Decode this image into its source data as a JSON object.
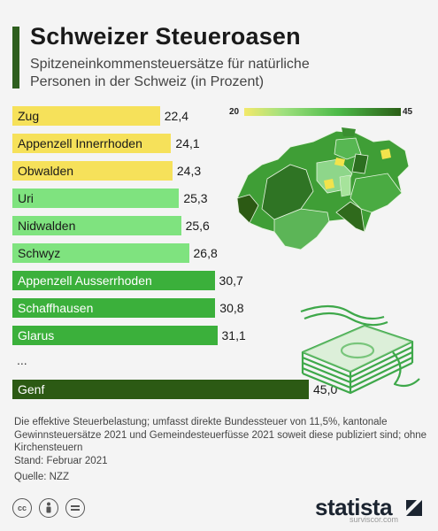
{
  "header": {
    "title": "Schweizer Steueroasen",
    "subtitle": "Spitzeneinkommensteuersätze für natürliche Personen in der Schweiz (in Prozent)"
  },
  "legend": {
    "min": "20",
    "max": "45"
  },
  "chart_data": {
    "type": "bar",
    "orientation": "horizontal",
    "categories": [
      "Zug",
      "Appenzell Innerrhoden",
      "Obwalden",
      "Uri",
      "Nidwalden",
      "Schwyz",
      "Appenzell Ausserrhoden",
      "Schaffhausen",
      "Glarus",
      "Genf"
    ],
    "values": [
      22.4,
      24.1,
      24.3,
      25.3,
      25.6,
      26.8,
      30.7,
      30.8,
      31.1,
      45.0
    ],
    "value_labels": [
      "22,4",
      "24,1",
      "24,3",
      "25,3",
      "25,6",
      "26,8",
      "30,7",
      "30,8",
      "31,1",
      "45,0"
    ],
    "colors": [
      "#f6e15a",
      "#f6e15a",
      "#f6e15a",
      "#7fe37f",
      "#7fe37f",
      "#7fe37f",
      "#3bb03b",
      "#3bb03b",
      "#3bb03b",
      "#2c5a14"
    ],
    "label_colors": [
      "#1a1a1a",
      "#1a1a1a",
      "#1a1a1a",
      "#1a1a1a",
      "#1a1a1a",
      "#1a1a1a",
      "#ffffff",
      "#ffffff",
      "#ffffff",
      "#ffffff"
    ],
    "ellipsis": "...",
    "color_scale": {
      "min": 20,
      "max": 45,
      "low_color": "#f3e96a",
      "high_color": "#2a5e16"
    },
    "xlim": [
      0,
      45
    ]
  },
  "footnote": {
    "line1": "Die effektive Steuerbelastung; umfasst direkte Bundessteuer von 11,5%, kantonale Gewinnsteuersätze 2021 und Gemeindesteuerfüsse 2021 soweit diese publiziert sind; ohne Kirchensteuern",
    "line2": "Stand: Februar 2021",
    "line3": "Quelle: NZZ"
  },
  "footer": {
    "license_icons": [
      "cc-icon",
      "by-icon",
      "nd-icon"
    ],
    "brand": "statista",
    "watermark": "surviscor.com"
  }
}
